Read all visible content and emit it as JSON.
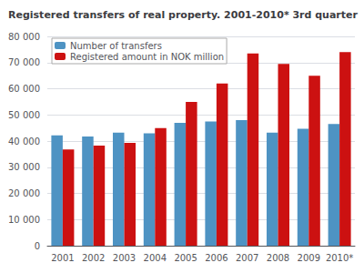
{
  "chart_data": {
    "type": "bar",
    "title": "Registered transfers of real property. 2001-2010* 3rd quarter",
    "categories": [
      "2001",
      "2002",
      "2003",
      "2004",
      "2005",
      "2006",
      "2007",
      "2008",
      "2009",
      "2010*"
    ],
    "series": [
      {
        "name": "Number of transfers",
        "color": "#4e93c3",
        "values": [
          42200,
          41700,
          43200,
          43000,
          47000,
          47500,
          48000,
          43200,
          44700,
          46500
        ]
      },
      {
        "name": "Registered amount in NOK million",
        "color": "#cc1111",
        "values": [
          36800,
          38300,
          39300,
          45000,
          55000,
          62000,
          73500,
          69500,
          65000,
          74000
        ]
      }
    ],
    "ylim": [
      0,
      80000
    ],
    "yticks": [
      0,
      {
        "value": 10000,
        "label": "10 000"
      },
      {
        "value": 20000,
        "label": "20 000"
      },
      {
        "value": 30000,
        "label": "30 000"
      },
      {
        "value": 40000,
        "label": "40 000"
      },
      {
        "value": 50000,
        "label": "50 000"
      },
      {
        "value": 60000,
        "label": "60 000"
      },
      {
        "value": 70000,
        "label": "70 000"
      },
      {
        "value": 80000,
        "label": "80 000"
      }
    ],
    "grid": true,
    "legend": "upper left"
  }
}
